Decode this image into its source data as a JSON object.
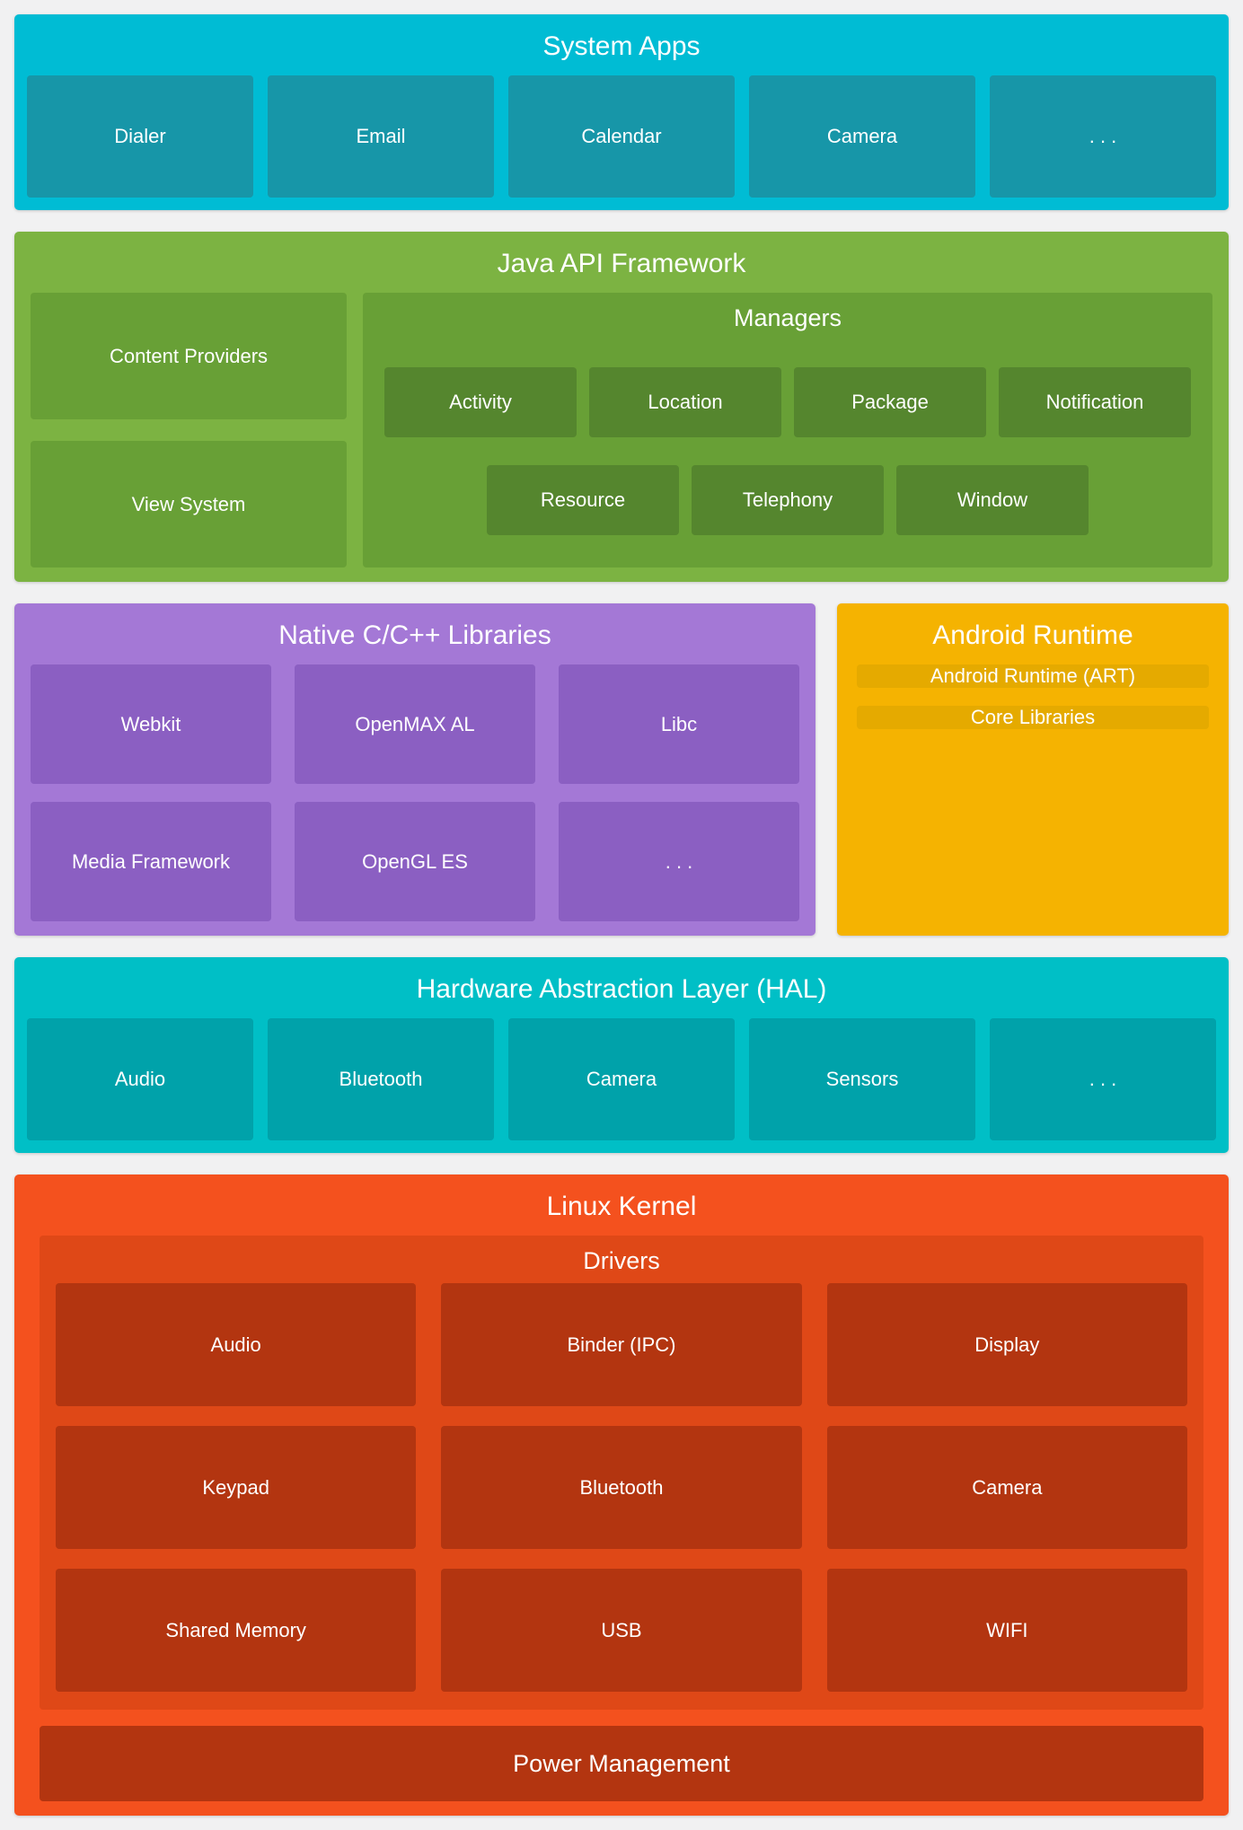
{
  "layers": {
    "system_apps": {
      "title": "System Apps",
      "items": [
        "Dialer",
        "Email",
        "Calendar",
        "Camera",
        ". . ."
      ]
    },
    "java_api": {
      "title": "Java API Framework",
      "left_items": [
        "Content Providers",
        "View System"
      ],
      "managers": {
        "title": "Managers",
        "row1": [
          "Activity",
          "Location",
          "Package",
          "Notification"
        ],
        "row2": [
          "Resource",
          "Telephony",
          "Window"
        ]
      }
    },
    "native_libs": {
      "title": "Native C/C++ Libraries",
      "items": [
        "Webkit",
        "OpenMAX AL",
        "Libc",
        "Media Framework",
        "OpenGL ES",
        ". . ."
      ]
    },
    "android_runtime": {
      "title": "Android Runtime",
      "items": [
        "Android Runtime (ART)",
        "Core Libraries"
      ]
    },
    "hal": {
      "title": "Hardware Abstraction Layer (HAL)",
      "items": [
        "Audio",
        "Bluetooth",
        "Camera",
        "Sensors",
        ". . ."
      ]
    },
    "linux_kernel": {
      "title": "Linux Kernel",
      "drivers": {
        "title": "Drivers",
        "items": [
          "Audio",
          "Binder (IPC)",
          "Display",
          "Keypad",
          "Bluetooth",
          "Camera",
          "Shared Memory",
          "USB",
          "WIFI"
        ]
      },
      "power": "Power Management"
    }
  },
  "colors": {
    "page_background": "#f1f1f2",
    "system_apps_bg": "#00bcd4",
    "system_apps_box": "#1796a8",
    "java_bg": "#7cb342",
    "java_box": "#68a036",
    "managers_box": "#55862e",
    "native_bg": "#a478d6",
    "native_box": "#8b5fc2",
    "runtime_bg": "#f5b301",
    "runtime_box": "#e5aa00",
    "hal_bg": "#00bfc6",
    "hal_box": "#00a2aa",
    "kernel_bg": "#f4511e",
    "drivers_bg": "#df4817",
    "kernel_box": "#b33510",
    "text": "#ffffff"
  }
}
